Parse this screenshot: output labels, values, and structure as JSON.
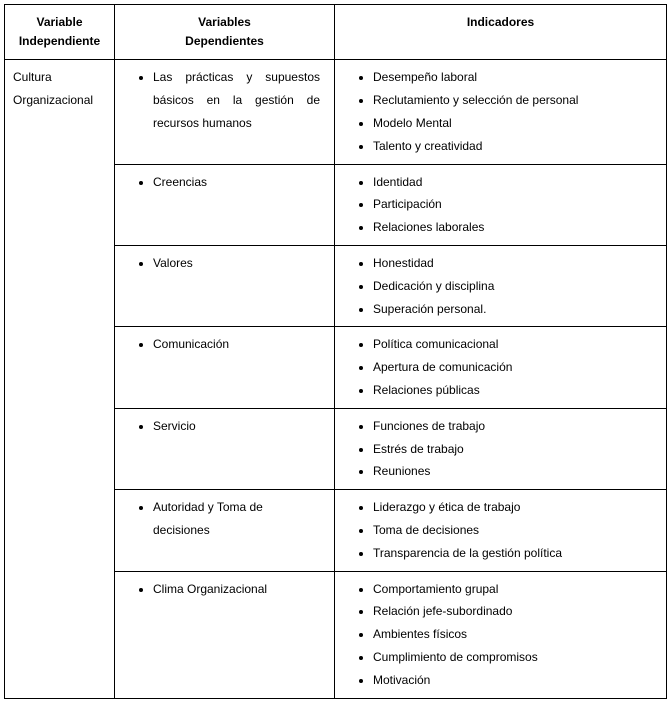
{
  "headers": {
    "col1_line1": "Variable",
    "col1_line2": "Independiente",
    "col2_line1": "Variables",
    "col2_line2": "Dependientes",
    "col3": "Indicadores"
  },
  "independiente": {
    "line1": "Cultura",
    "line2": "Organizacional"
  },
  "rows": [
    {
      "dependiente": [
        "Las prácticas y supuestos básicos en la gestión de recursos humanos"
      ],
      "indicadores": [
        "Desempeño laboral",
        "Reclutamiento y selección de personal",
        "Modelo Mental",
        "Talento y creatividad"
      ]
    },
    {
      "dependiente": [
        "Creencias"
      ],
      "indicadores": [
        "Identidad",
        "Participación",
        "Relaciones laborales"
      ]
    },
    {
      "dependiente": [
        "Valores"
      ],
      "indicadores": [
        "Honestidad",
        " Dedicación y disciplina",
        "Superación personal."
      ]
    },
    {
      "dependiente": [
        "Comunicación"
      ],
      "indicadores": [
        "Política comunicacional",
        "Apertura de comunicación",
        "Relaciones públicas"
      ]
    },
    {
      "dependiente": [
        "Servicio"
      ],
      "indicadores": [
        "Funciones de trabajo",
        "Estrés de trabajo",
        "Reuniones"
      ]
    },
    {
      "dependiente": [
        "Autoridad y Toma de decisiones"
      ],
      "indicadores": [
        "Liderazgo y ética de trabajo",
        "Toma de decisiones",
        "Transparencia de la gestión política"
      ]
    },
    {
      "dependiente": [
        "Clima Organizacional"
      ],
      "indicadores": [
        "Comportamiento grupal",
        "Relación jefe-subordinado",
        "Ambientes físicos",
        "Cumplimiento de compromisos",
        "Motivación"
      ]
    }
  ]
}
